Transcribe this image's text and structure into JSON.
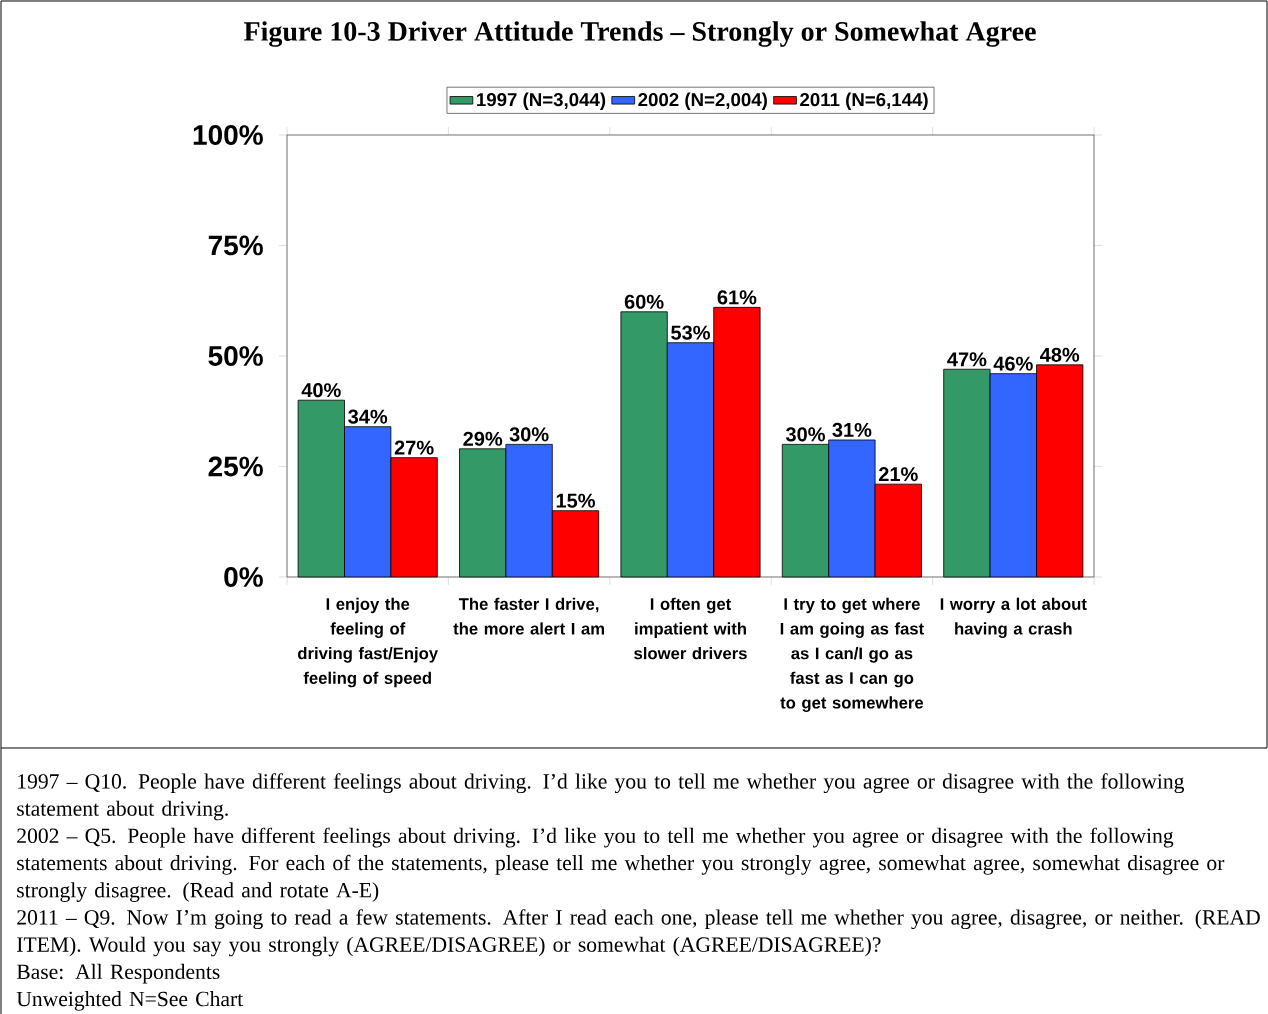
{
  "chart_data": {
    "type": "bar",
    "title": "Figure 10-3 Driver Attitude Trends – Strongly or Somewhat Agree",
    "categories": [
      "I enjoy the feeling of driving fast/Enjoy feeling of speed",
      "The faster I drive, the more alert I am",
      "I often get impatient with slower drivers",
      "I try to get where I am going as fast as I can/I go as fast as I can go to get somewhere",
      "I worry a lot about having a crash"
    ],
    "series": [
      {
        "name": "1997 (N=3,044)",
        "color": "#339966",
        "values": [
          40,
          29,
          60,
          30,
          47
        ],
        "value_labels": [
          "40%",
          "29%",
          "60%",
          "30%",
          "47%"
        ]
      },
      {
        "name": "2002 (N=2,004)",
        "color": "#3366ff",
        "values": [
          34,
          30,
          53,
          31,
          46
        ],
        "value_labels": [
          "34%",
          "30%",
          "53%",
          "31%",
          "46%"
        ]
      },
      {
        "name": "2011 (N=6,144)",
        "color": "#ff0000",
        "values": [
          27,
          15,
          61,
          21,
          48
        ],
        "value_labels": [
          "27%",
          "15%",
          "61%",
          "21%",
          "48%"
        ]
      }
    ],
    "ylim": [
      0,
      100
    ],
    "yticks": [
      {
        "value": 0,
        "label": "0%"
      },
      {
        "value": 25,
        "label": "25%"
      },
      {
        "value": 50,
        "label": "50%"
      },
      {
        "value": 75,
        "label": "75%"
      },
      {
        "value": 100,
        "label": "100%"
      }
    ],
    "legend": "top",
    "annotations": [
      "1997 – Q10. People have different feelings about driving. I’d like you to tell me whether you agree or disagree with the following statement about driving.",
      "2002 – Q5. People have different feelings about driving. I’d like you to tell me whether you agree or disagree with the following statements about driving. For each of the statements, please tell me whether you strongly agree, somewhat agree, somewhat disagree or strongly disagree. (Read and rotate A-E)",
      "2011 – Q9. Now I’m going to read a few statements. After I read each one, please tell me whether you agree, disagree, or neither. (READ ITEM). Would you say you strongly (AGREE/DISAGREE) or somewhat (AGREE/DISAGREE)?",
      "Base: All Respondents",
      "Unweighted N=See Chart"
    ]
  }
}
